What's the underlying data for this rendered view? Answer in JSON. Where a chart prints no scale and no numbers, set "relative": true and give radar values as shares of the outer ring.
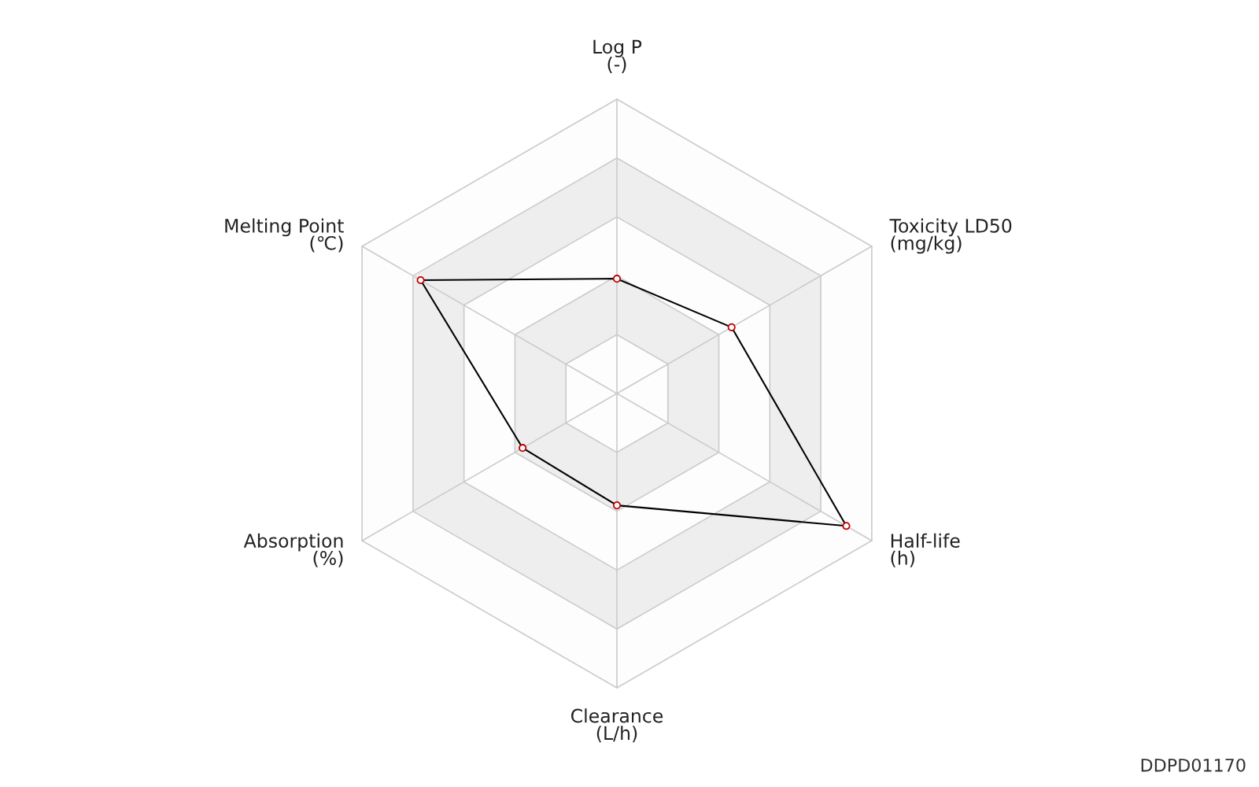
{
  "chart_data": {
    "type": "radar",
    "relative": true,
    "grid": true,
    "marker": "circle",
    "line_style": "solid",
    "categories": [
      "Log P\n(-)",
      "Toxicity LD50\n(mg/kg)",
      "Half-life\n(h)",
      "Clearance\n(L/h)",
      "Absorption\n(%)",
      "Melting Point\n(℃)"
    ],
    "series": [
      {
        "color": "#000000",
        "values": [
          0.39,
          0.45,
          0.9,
          0.38,
          0.37,
          0.77
        ]
      }
    ],
    "annotations": [
      "DDPD01170"
    ]
  }
}
